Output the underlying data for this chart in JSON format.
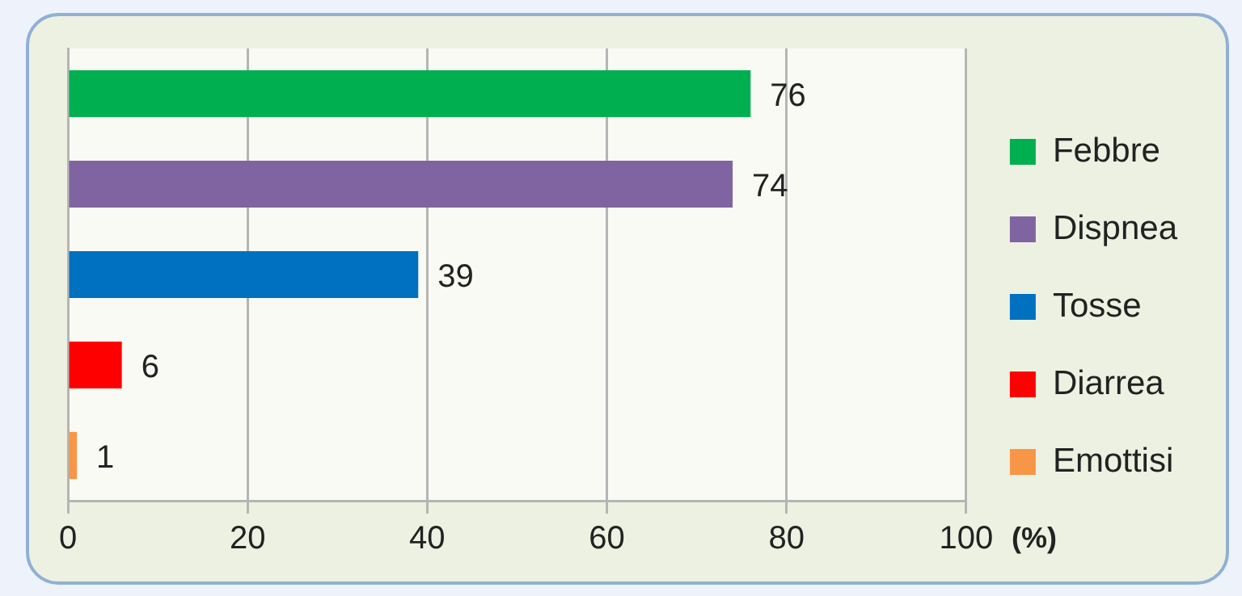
{
  "chart_data": {
    "type": "bar",
    "orientation": "horizontal",
    "xlabel": "(%)",
    "categories": [
      null,
      null,
      null,
      null,
      null
    ],
    "series": [
      {
        "name": "Febbre",
        "color": "#00b050",
        "values": [
          76,
          null,
          null,
          null,
          null
        ]
      },
      {
        "name": "Dispnea",
        "color": "#8064a2",
        "values": [
          null,
          74,
          null,
          null,
          null
        ]
      },
      {
        "name": "Tosse",
        "color": "#0070c0",
        "values": [
          null,
          null,
          39,
          null,
          null
        ]
      },
      {
        "name": "Diarrea",
        "color": "#ff0000",
        "values": [
          null,
          null,
          null,
          6,
          null
        ]
      },
      {
        "name": "Emottisi",
        "color": "#f79646",
        "values": [
          null,
          null,
          null,
          null,
          1
        ]
      }
    ],
    "xlim": [
      0,
      100
    ],
    "xticks": [
      0,
      20,
      40,
      60,
      80,
      100
    ],
    "grid": "x",
    "legend": "right",
    "data_labels": true
  }
}
